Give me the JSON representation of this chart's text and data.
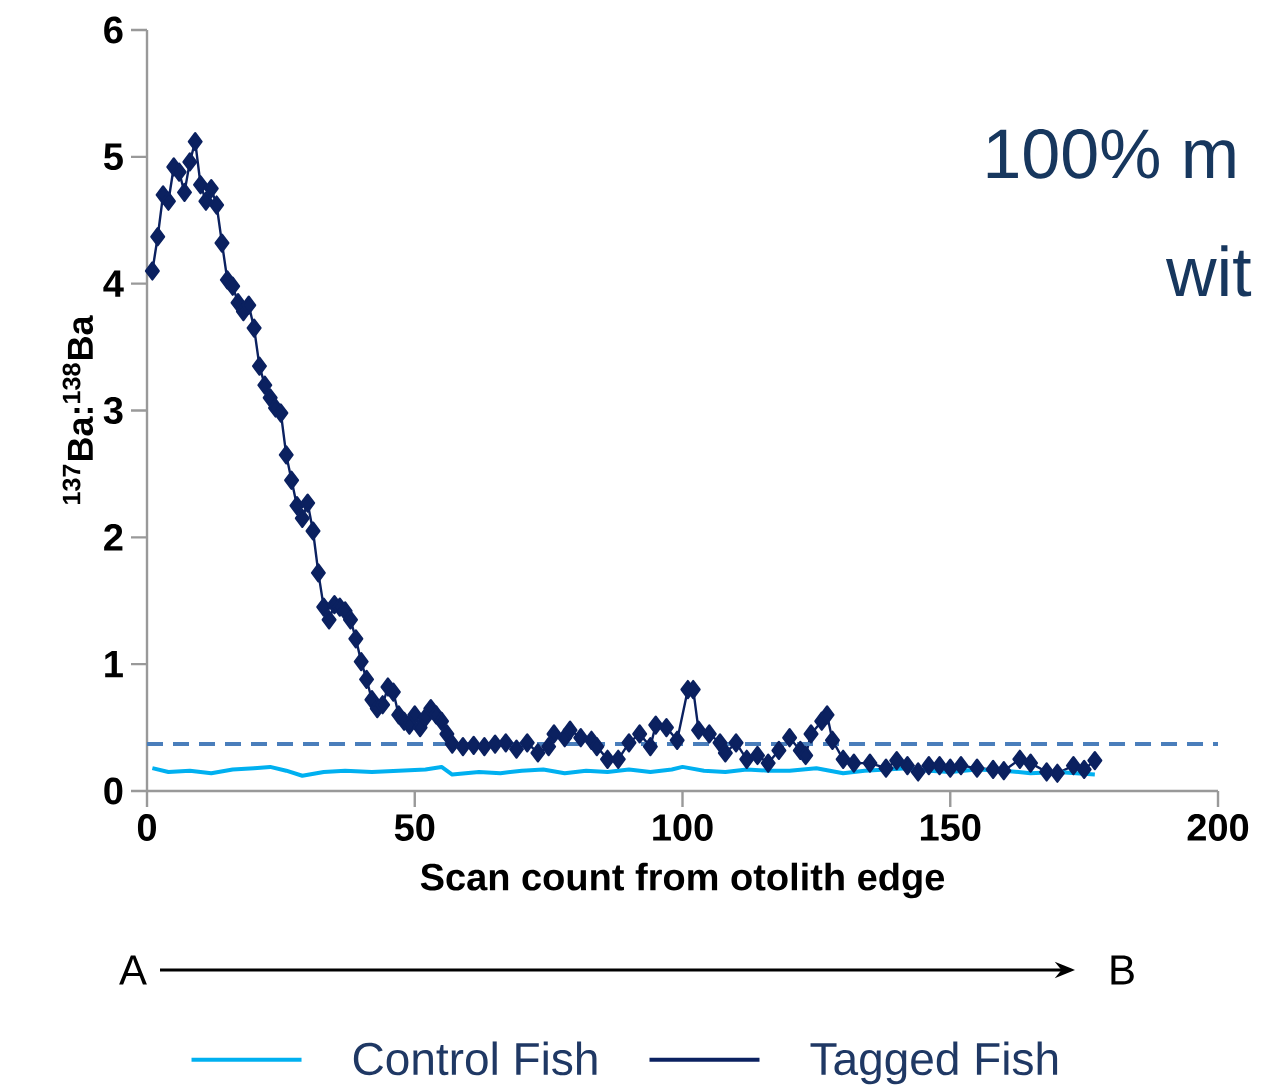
{
  "chart_data": {
    "type": "line",
    "xlabel": "Scan count from otolith edge",
    "ylabel": "$^{137}$Ba:$^{138}$Ba",
    "xlim": [
      0,
      200
    ],
    "xticks": [
      0,
      50,
      100,
      150,
      200
    ],
    "ylim": [
      0,
      6
    ],
    "yticks": [
      0,
      1,
      2,
      3,
      4,
      5,
      6
    ],
    "grid": false,
    "legend": "bottom",
    "line_style": "solid",
    "series": [
      {
        "name": "Control Fish",
        "color": "#00b0f0",
        "marker": "none",
        "x": [
          1,
          4,
          8,
          12,
          16,
          20,
          23,
          26,
          29,
          33,
          37,
          42,
          47,
          52,
          55,
          57,
          62,
          66,
          70,
          74,
          78,
          82,
          86,
          90,
          94,
          98,
          100,
          104,
          108,
          112,
          116,
          120,
          125,
          130,
          134,
          138,
          142,
          146,
          150,
          155,
          160,
          165,
          170,
          177
        ],
        "values": [
          0.18,
          0.15,
          0.16,
          0.14,
          0.17,
          0.18,
          0.19,
          0.16,
          0.12,
          0.15,
          0.16,
          0.15,
          0.16,
          0.17,
          0.19,
          0.13,
          0.15,
          0.14,
          0.16,
          0.17,
          0.14,
          0.16,
          0.15,
          0.17,
          0.15,
          0.17,
          0.19,
          0.16,
          0.15,
          0.17,
          0.16,
          0.16,
          0.18,
          0.14,
          0.16,
          0.17,
          0.18,
          0.16,
          0.15,
          0.17,
          0.16,
          0.14,
          0.15,
          0.13
        ]
      },
      {
        "name": "Tagged Fish",
        "color": "#0b2160",
        "marker": "diamond",
        "x": [
          1,
          2,
          3,
          4,
          5,
          6,
          7,
          8,
          9,
          10,
          11,
          12,
          13,
          14,
          15,
          16,
          17,
          18,
          19,
          20,
          21,
          22,
          23,
          24,
          25,
          26,
          27,
          28,
          29,
          30,
          31,
          32,
          33,
          34,
          35,
          36,
          37,
          38,
          39,
          40,
          41,
          42,
          43,
          44,
          45,
          46,
          47,
          48,
          49,
          50,
          51,
          52,
          53,
          54,
          55,
          56,
          57,
          59,
          61,
          63,
          65,
          67,
          69,
          71,
          73,
          75,
          76,
          78,
          79,
          81,
          83,
          84,
          86,
          88,
          90,
          92,
          94,
          95,
          97,
          99,
          101,
          102,
          103,
          105,
          107,
          108,
          110,
          112,
          114,
          116,
          118,
          120,
          122,
          123,
          124,
          126,
          127,
          128,
          130,
          132,
          135,
          138,
          140,
          142,
          144,
          146,
          148,
          150,
          152,
          155,
          158,
          160,
          163,
          165,
          168,
          170,
          173,
          175,
          177
        ],
        "values": [
          4.1,
          4.37,
          4.7,
          4.65,
          4.92,
          4.88,
          4.72,
          4.96,
          5.12,
          4.78,
          4.65,
          4.75,
          4.62,
          4.32,
          4.03,
          3.98,
          3.85,
          3.78,
          3.83,
          3.65,
          3.35,
          3.2,
          3.1,
          3.02,
          2.98,
          2.65,
          2.45,
          2.25,
          2.15,
          2.27,
          2.05,
          1.72,
          1.45,
          1.35,
          1.47,
          1.45,
          1.42,
          1.35,
          1.2,
          1.02,
          0.88,
          0.72,
          0.65,
          0.68,
          0.82,
          0.78,
          0.6,
          0.55,
          0.52,
          0.6,
          0.5,
          0.58,
          0.65,
          0.6,
          0.55,
          0.45,
          0.37,
          0.35,
          0.36,
          0.35,
          0.37,
          0.38,
          0.33,
          0.38,
          0.3,
          0.35,
          0.45,
          0.42,
          0.48,
          0.42,
          0.4,
          0.35,
          0.25,
          0.25,
          0.38,
          0.45,
          0.35,
          0.52,
          0.5,
          0.4,
          0.8,
          0.8,
          0.48,
          0.45,
          0.38,
          0.3,
          0.38,
          0.25,
          0.28,
          0.22,
          0.32,
          0.42,
          0.32,
          0.28,
          0.45,
          0.55,
          0.6,
          0.4,
          0.25,
          0.22,
          0.22,
          0.18,
          0.24,
          0.2,
          0.15,
          0.2,
          0.2,
          0.18,
          0.2,
          0.18,
          0.17,
          0.16,
          0.25,
          0.22,
          0.15,
          0.14,
          0.2,
          0.17,
          0.24
        ]
      }
    ],
    "ref_lines": [
      {
        "axis": "y",
        "value": 0.37,
        "color": "#4a7ebb",
        "line_style": "dashed"
      }
    ],
    "annotations": [
      "A",
      "B",
      "100% m",
      "wit"
    ]
  }
}
